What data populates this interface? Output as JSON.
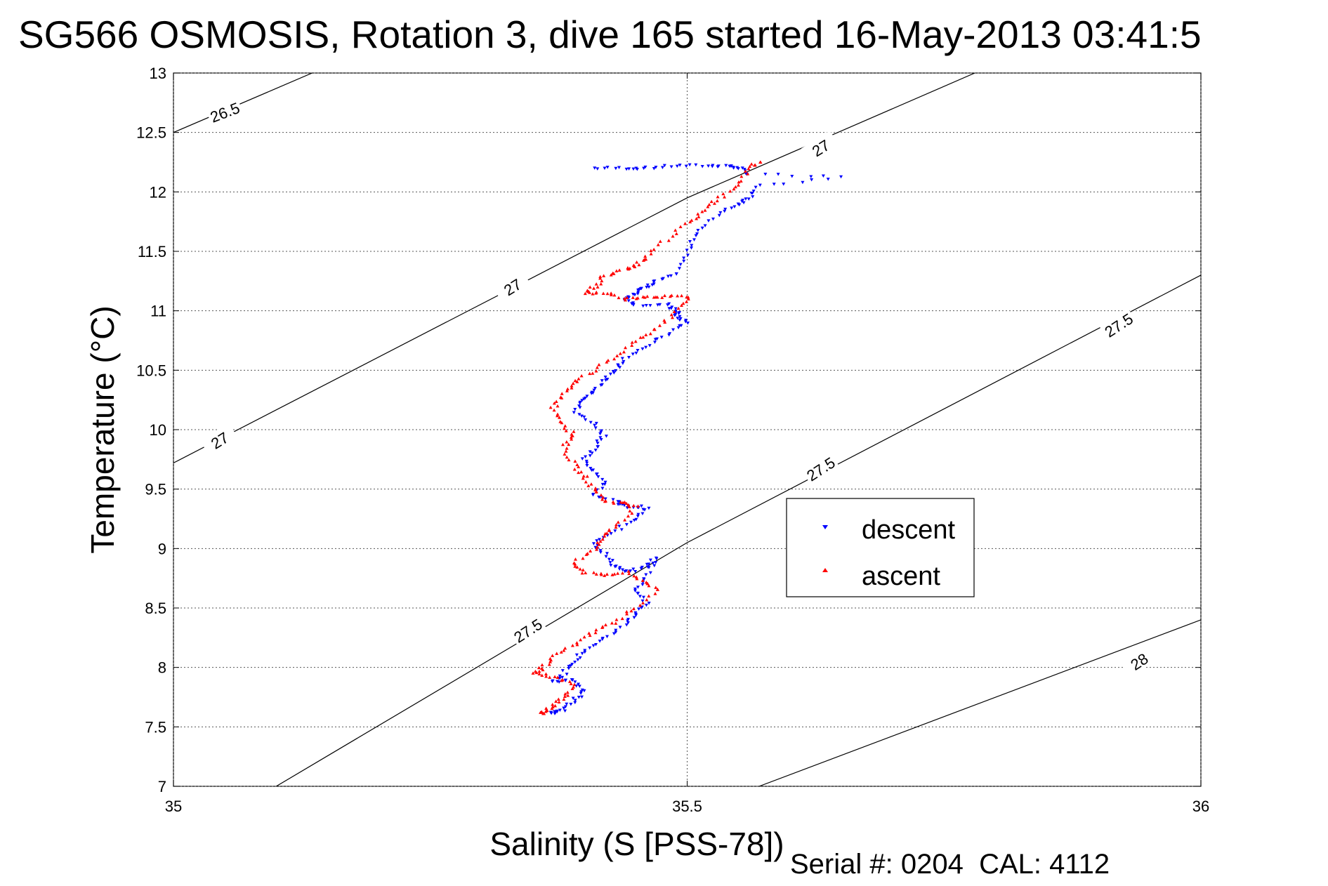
{
  "chart_data": {
    "type": "scatter",
    "title": "SG566 OSMOSIS, Rotation 3, dive 165 started 16-May-2013 03:41:5",
    "xlabel": "Salinity (S [PSS-78])",
    "ylabel": "Temperature (°C)",
    "xlim": [
      35,
      36
    ],
    "ylim": [
      7,
      13
    ],
    "x_ticks": [
      "35",
      "35.5",
      "36"
    ],
    "y_ticks": [
      "7",
      "7.5",
      "8",
      "8.5",
      "9",
      "9.5",
      "10",
      "10.5",
      "11",
      "11.5",
      "12",
      "12.5",
      "13"
    ],
    "grid": true,
    "legend_position": "right",
    "footer": "Serial #: 0204  CAL: 4112",
    "contours": [
      {
        "label": "26.5",
        "points": [
          [
            35.0,
            12.5
          ],
          [
            35.135,
            13.0
          ]
        ]
      },
      {
        "label": "27",
        "points": [
          [
            35.0,
            9.72
          ],
          [
            35.5,
            11.95
          ],
          [
            35.78,
            13.0
          ]
        ]
      },
      {
        "label": "27.5",
        "points": [
          [
            35.1,
            7.0
          ],
          [
            35.5,
            9.05
          ],
          [
            36.0,
            11.3
          ]
        ]
      },
      {
        "label": "28",
        "points": [
          [
            35.57,
            7.0
          ],
          [
            36.0,
            8.4
          ]
        ]
      }
    ],
    "contour_labels": [
      {
        "text": "26.5",
        "x": 35.05,
        "y": 12.67,
        "angle": -21
      },
      {
        "text": "27",
        "x": 35.045,
        "y": 9.91,
        "angle": -32
      },
      {
        "text": "27",
        "x": 35.33,
        "y": 11.2,
        "angle": -32
      },
      {
        "text": "27",
        "x": 35.63,
        "y": 12.37,
        "angle": -32
      },
      {
        "text": "27.5",
        "x": 35.345,
        "y": 8.31,
        "angle": -33
      },
      {
        "text": "27.5",
        "x": 35.63,
        "y": 9.67,
        "angle": -33
      },
      {
        "text": "27.5",
        "x": 35.92,
        "y": 10.88,
        "angle": -33
      },
      {
        "text": "28",
        "x": 35.94,
        "y": 8.05,
        "angle": -33
      }
    ],
    "series": [
      {
        "name": "descent",
        "color": "#0000ff",
        "marker": "down-triangle",
        "x": [
          35.41,
          35.44,
          35.46,
          35.49,
          35.52,
          35.54,
          35.55,
          35.56,
          35.65,
          35.57,
          35.56,
          35.55,
          35.53,
          35.51,
          35.5,
          35.49,
          35.47,
          35.46,
          35.45,
          35.44,
          35.45,
          35.48,
          35.49,
          35.49,
          35.5,
          35.48,
          35.46,
          35.44,
          35.43,
          35.42,
          35.41,
          35.4,
          35.39,
          35.41,
          35.42,
          35.41,
          35.4,
          35.41,
          35.42,
          35.41,
          35.43,
          35.44,
          35.46,
          35.45,
          35.43,
          35.41,
          35.42,
          35.43,
          35.44,
          35.46,
          35.47,
          35.46,
          35.45,
          35.46,
          35.45,
          35.44,
          35.42,
          35.4,
          35.39,
          35.38,
          35.37,
          35.39,
          35.4,
          35.39,
          35.38,
          35.37
        ],
        "y": [
          12.2,
          12.2,
          12.2,
          12.22,
          12.22,
          12.22,
          12.2,
          12.15,
          12.12,
          12.05,
          11.95,
          11.9,
          11.8,
          11.65,
          11.5,
          11.32,
          11.25,
          11.2,
          11.15,
          11.1,
          11.05,
          11.05,
          11.0,
          10.95,
          10.9,
          10.8,
          10.7,
          10.6,
          10.5,
          10.42,
          10.32,
          10.25,
          10.15,
          10.05,
          9.95,
          9.85,
          9.75,
          9.65,
          9.55,
          9.45,
          9.4,
          9.35,
          9.35,
          9.25,
          9.15,
          9.05,
          8.95,
          8.85,
          8.8,
          8.85,
          8.92,
          8.75,
          8.65,
          8.55,
          8.45,
          8.35,
          8.25,
          8.15,
          8.05,
          7.95,
          7.88,
          7.9,
          7.8,
          7.72,
          7.65,
          7.62
        ]
      },
      {
        "name": "ascent",
        "color": "#ff0000",
        "marker": "up-triangle",
        "x": [
          35.57,
          35.56,
          35.55,
          35.53,
          35.52,
          35.5,
          35.48,
          35.46,
          35.45,
          35.44,
          35.42,
          35.41,
          35.4,
          35.42,
          35.44,
          35.46,
          35.48,
          35.5,
          35.49,
          35.47,
          35.45,
          35.43,
          35.41,
          35.39,
          35.38,
          35.37,
          35.38,
          35.39,
          35.38,
          35.39,
          35.4,
          35.41,
          35.42,
          35.44,
          35.45,
          35.43,
          35.42,
          35.41,
          35.39,
          35.4,
          35.42,
          35.44,
          35.46,
          35.47,
          35.45,
          35.43,
          35.41,
          35.39,
          35.37,
          35.36,
          35.35,
          35.37,
          35.39,
          35.38,
          35.37,
          35.36
        ],
        "y": [
          12.25,
          12.2,
          12.05,
          11.95,
          11.85,
          11.75,
          11.6,
          11.45,
          11.38,
          11.35,
          11.3,
          11.2,
          11.15,
          11.15,
          11.1,
          11.12,
          11.12,
          11.12,
          11.0,
          10.85,
          10.75,
          10.62,
          10.5,
          10.4,
          10.3,
          10.18,
          10.05,
          9.95,
          9.85,
          9.7,
          9.6,
          9.5,
          9.4,
          9.38,
          9.35,
          9.2,
          9.1,
          9.0,
          8.88,
          8.8,
          8.78,
          8.8,
          8.72,
          8.65,
          8.5,
          8.38,
          8.3,
          8.2,
          8.1,
          8.0,
          7.95,
          7.92,
          7.85,
          7.75,
          7.68,
          7.62
        ]
      }
    ]
  }
}
